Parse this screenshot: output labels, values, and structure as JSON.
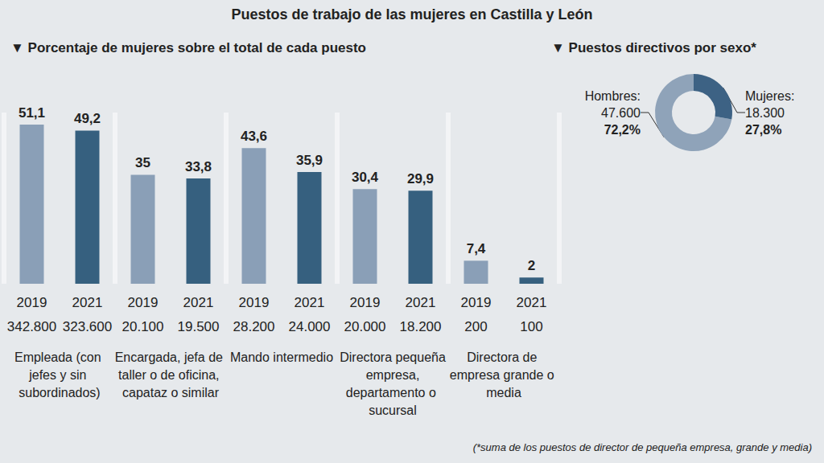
{
  "title": "Puestos de trabajo de las mujeres en Castilla y León",
  "note": "(*suma de los puestos de director de pequeña empresa, grande y media)",
  "chart_data": [
    {
      "type": "bar",
      "title": "▼ Porcentaje de mujeres sobre el total de cada puesto",
      "categories": [
        "Empleada (con jefes y sin subordinados)",
        "Encargada, jefa de taller o de oficina, capataz o similar",
        "Mando intermedio",
        "Directora pequeña empresa, departamento o sucursal",
        "Directora de empresa grande o media"
      ],
      "series": [
        {
          "name": "2019",
          "color": "#8a9fb7",
          "values": [
            51.1,
            35,
            43.6,
            30.4,
            7.4
          ],
          "value_labels": [
            "51,1",
            "35",
            "43,6",
            "30,4",
            "7,4"
          ],
          "counts": [
            342800,
            20100,
            28200,
            20000,
            200
          ],
          "count_labels": [
            "342.800",
            "20.100",
            "28.200",
            "20.000",
            "200"
          ]
        },
        {
          "name": "2021",
          "color": "#36607f",
          "values": [
            49.2,
            33.8,
            35.9,
            29.9,
            2
          ],
          "value_labels": [
            "49,2",
            "33,8",
            "35,9",
            "29,9",
            "2"
          ],
          "counts": [
            323600,
            19500,
            24000,
            18200,
            100
          ],
          "count_labels": [
            "323.600",
            "19.500",
            "24.000",
            "18.200",
            "100"
          ]
        }
      ],
      "ylim": [
        0,
        55
      ],
      "grid": false,
      "tick_labels": false,
      "data_labels": true
    },
    {
      "type": "pie",
      "title": "▼ Puestos directivos por sexo*",
      "categories": [
        "Hombres:",
        "Mujeres:"
      ],
      "values": [
        72.2,
        27.8
      ],
      "value_labels": [
        "72,2%",
        "27,8%"
      ],
      "counts": [
        47600,
        18300
      ],
      "count_labels": [
        "47.600",
        "18.300"
      ],
      "colors": [
        "#8fa3b9",
        "#3d6284"
      ],
      "data_labels": true
    }
  ]
}
